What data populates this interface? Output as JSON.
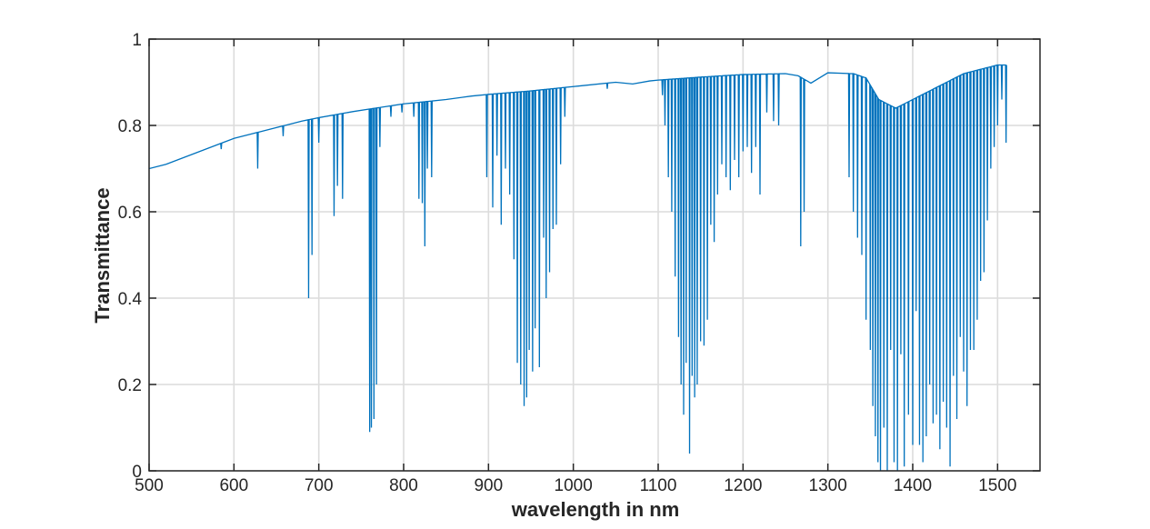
{
  "chart_data": {
    "type": "line",
    "title": "",
    "xlabel": "wavelength in nm",
    "ylabel": "Transmittance",
    "xlim": [
      500,
      1550
    ],
    "ylim": [
      0,
      1
    ],
    "xticks": [
      500,
      600,
      700,
      800,
      900,
      1000,
      1100,
      1200,
      1300,
      1400,
      1500
    ],
    "yticks": [
      0,
      0.2,
      0.4,
      0.6,
      0.8,
      1
    ],
    "ytick_labels": [
      "0",
      "0.2",
      "0.4",
      "0.6",
      "0.8",
      "1"
    ],
    "grid": true,
    "series": [
      {
        "color": "#0072BD",
        "envelope": [
          [
            500,
            0.7
          ],
          [
            520,
            0.71
          ],
          [
            540,
            0.725
          ],
          [
            560,
            0.74
          ],
          [
            580,
            0.755
          ],
          [
            600,
            0.77
          ],
          [
            620,
            0.78
          ],
          [
            650,
            0.795
          ],
          [
            680,
            0.81
          ],
          [
            700,
            0.818
          ],
          [
            720,
            0.825
          ],
          [
            740,
            0.832
          ],
          [
            760,
            0.838
          ],
          [
            780,
            0.844
          ],
          [
            800,
            0.85
          ],
          [
            850,
            0.86
          ],
          [
            880,
            0.868
          ],
          [
            900,
            0.872
          ],
          [
            950,
            0.88
          ],
          [
            1000,
            0.89
          ],
          [
            1050,
            0.9
          ],
          [
            1070,
            0.896
          ],
          [
            1090,
            0.903
          ],
          [
            1100,
            0.905
          ],
          [
            1150,
            0.912
          ],
          [
            1200,
            0.918
          ],
          [
            1250,
            0.92
          ],
          [
            1265,
            0.915
          ],
          [
            1280,
            0.898
          ],
          [
            1300,
            0.922
          ],
          [
            1330,
            0.92
          ],
          [
            1345,
            0.91
          ],
          [
            1360,
            0.86
          ],
          [
            1380,
            0.84
          ],
          [
            1400,
            0.86
          ],
          [
            1420,
            0.88
          ],
          [
            1440,
            0.9
          ],
          [
            1460,
            0.92
          ],
          [
            1480,
            0.93
          ],
          [
            1500,
            0.94
          ],
          [
            1510,
            0.94
          ]
        ],
        "dips": [
          [
            585,
            0.745
          ],
          [
            628,
            0.7
          ],
          [
            658,
            0.775
          ],
          [
            688,
            0.4
          ],
          [
            692,
            0.5
          ],
          [
            700,
            0.76
          ],
          [
            718,
            0.59
          ],
          [
            722,
            0.66
          ],
          [
            728,
            0.63
          ],
          [
            760,
            0.09
          ],
          [
            762,
            0.1
          ],
          [
            765,
            0.12
          ],
          [
            768,
            0.2
          ],
          [
            772,
            0.75
          ],
          [
            785,
            0.82
          ],
          [
            798,
            0.83
          ],
          [
            812,
            0.82
          ],
          [
            818,
            0.63
          ],
          [
            822,
            0.62
          ],
          [
            825,
            0.52
          ],
          [
            828,
            0.7
          ],
          [
            833,
            0.68
          ],
          [
            898,
            0.68
          ],
          [
            905,
            0.61
          ],
          [
            910,
            0.73
          ],
          [
            915,
            0.57
          ],
          [
            920,
            0.7
          ],
          [
            925,
            0.64
          ],
          [
            930,
            0.49
          ],
          [
            934,
            0.25
          ],
          [
            938,
            0.2
          ],
          [
            942,
            0.15
          ],
          [
            945,
            0.17
          ],
          [
            948,
            0.28
          ],
          [
            952,
            0.23
          ],
          [
            955,
            0.33
          ],
          [
            960,
            0.24
          ],
          [
            965,
            0.54
          ],
          [
            968,
            0.4
          ],
          [
            972,
            0.46
          ],
          [
            976,
            0.56
          ],
          [
            980,
            0.57
          ],
          [
            985,
            0.71
          ],
          [
            990,
            0.82
          ],
          [
            1040,
            0.885
          ],
          [
            1105,
            0.87
          ],
          [
            1108,
            0.8
          ],
          [
            1112,
            0.68
          ],
          [
            1116,
            0.6
          ],
          [
            1120,
            0.45
          ],
          [
            1124,
            0.31
          ],
          [
            1127,
            0.2
          ],
          [
            1130,
            0.13
          ],
          [
            1133,
            0.25
          ],
          [
            1137,
            0.04
          ],
          [
            1140,
            0.22
          ],
          [
            1143,
            0.17
          ],
          [
            1146,
            0.2
          ],
          [
            1150,
            0.3
          ],
          [
            1154,
            0.29
          ],
          [
            1158,
            0.35
          ],
          [
            1162,
            0.57
          ],
          [
            1166,
            0.53
          ],
          [
            1170,
            0.64
          ],
          [
            1175,
            0.71
          ],
          [
            1180,
            0.68
          ],
          [
            1185,
            0.65
          ],
          [
            1190,
            0.72
          ],
          [
            1195,
            0.68
          ],
          [
            1200,
            0.74
          ],
          [
            1205,
            0.75
          ],
          [
            1210,
            0.69
          ],
          [
            1215,
            0.75
          ],
          [
            1220,
            0.64
          ],
          [
            1228,
            0.83
          ],
          [
            1236,
            0.81
          ],
          [
            1242,
            0.8
          ],
          [
            1268,
            0.52
          ],
          [
            1272,
            0.6
          ],
          [
            1325,
            0.68
          ],
          [
            1330,
            0.6
          ],
          [
            1335,
            0.54
          ],
          [
            1340,
            0.5
          ],
          [
            1345,
            0.35
          ],
          [
            1350,
            0.28
          ],
          [
            1353,
            0.15
          ],
          [
            1356,
            0.08
          ],
          [
            1359,
            0.02
          ],
          [
            1362,
            0.0
          ],
          [
            1366,
            0.1
          ],
          [
            1370,
            0.0
          ],
          [
            1374,
            0.28
          ],
          [
            1378,
            0.02
          ],
          [
            1382,
            0.0
          ],
          [
            1386,
            0.27
          ],
          [
            1390,
            0.01
          ],
          [
            1395,
            0.13
          ],
          [
            1400,
            0.06
          ],
          [
            1404,
            0.37
          ],
          [
            1408,
            0.06
          ],
          [
            1412,
            0.02
          ],
          [
            1416,
            0.08
          ],
          [
            1420,
            0.2
          ],
          [
            1424,
            0.11
          ],
          [
            1428,
            0.13
          ],
          [
            1432,
            0.05
          ],
          [
            1436,
            0.16
          ],
          [
            1440,
            0.1
          ],
          [
            1444,
            0.01
          ],
          [
            1448,
            0.22
          ],
          [
            1452,
            0.12
          ],
          [
            1456,
            0.31
          ],
          [
            1460,
            0.23
          ],
          [
            1464,
            0.15
          ],
          [
            1468,
            0.28
          ],
          [
            1472,
            0.28
          ],
          [
            1476,
            0.35
          ],
          [
            1480,
            0.44
          ],
          [
            1484,
            0.46
          ],
          [
            1488,
            0.58
          ],
          [
            1492,
            0.7
          ],
          [
            1496,
            0.75
          ],
          [
            1500,
            0.8
          ],
          [
            1505,
            0.86
          ],
          [
            1510,
            0.76
          ]
        ]
      }
    ]
  }
}
